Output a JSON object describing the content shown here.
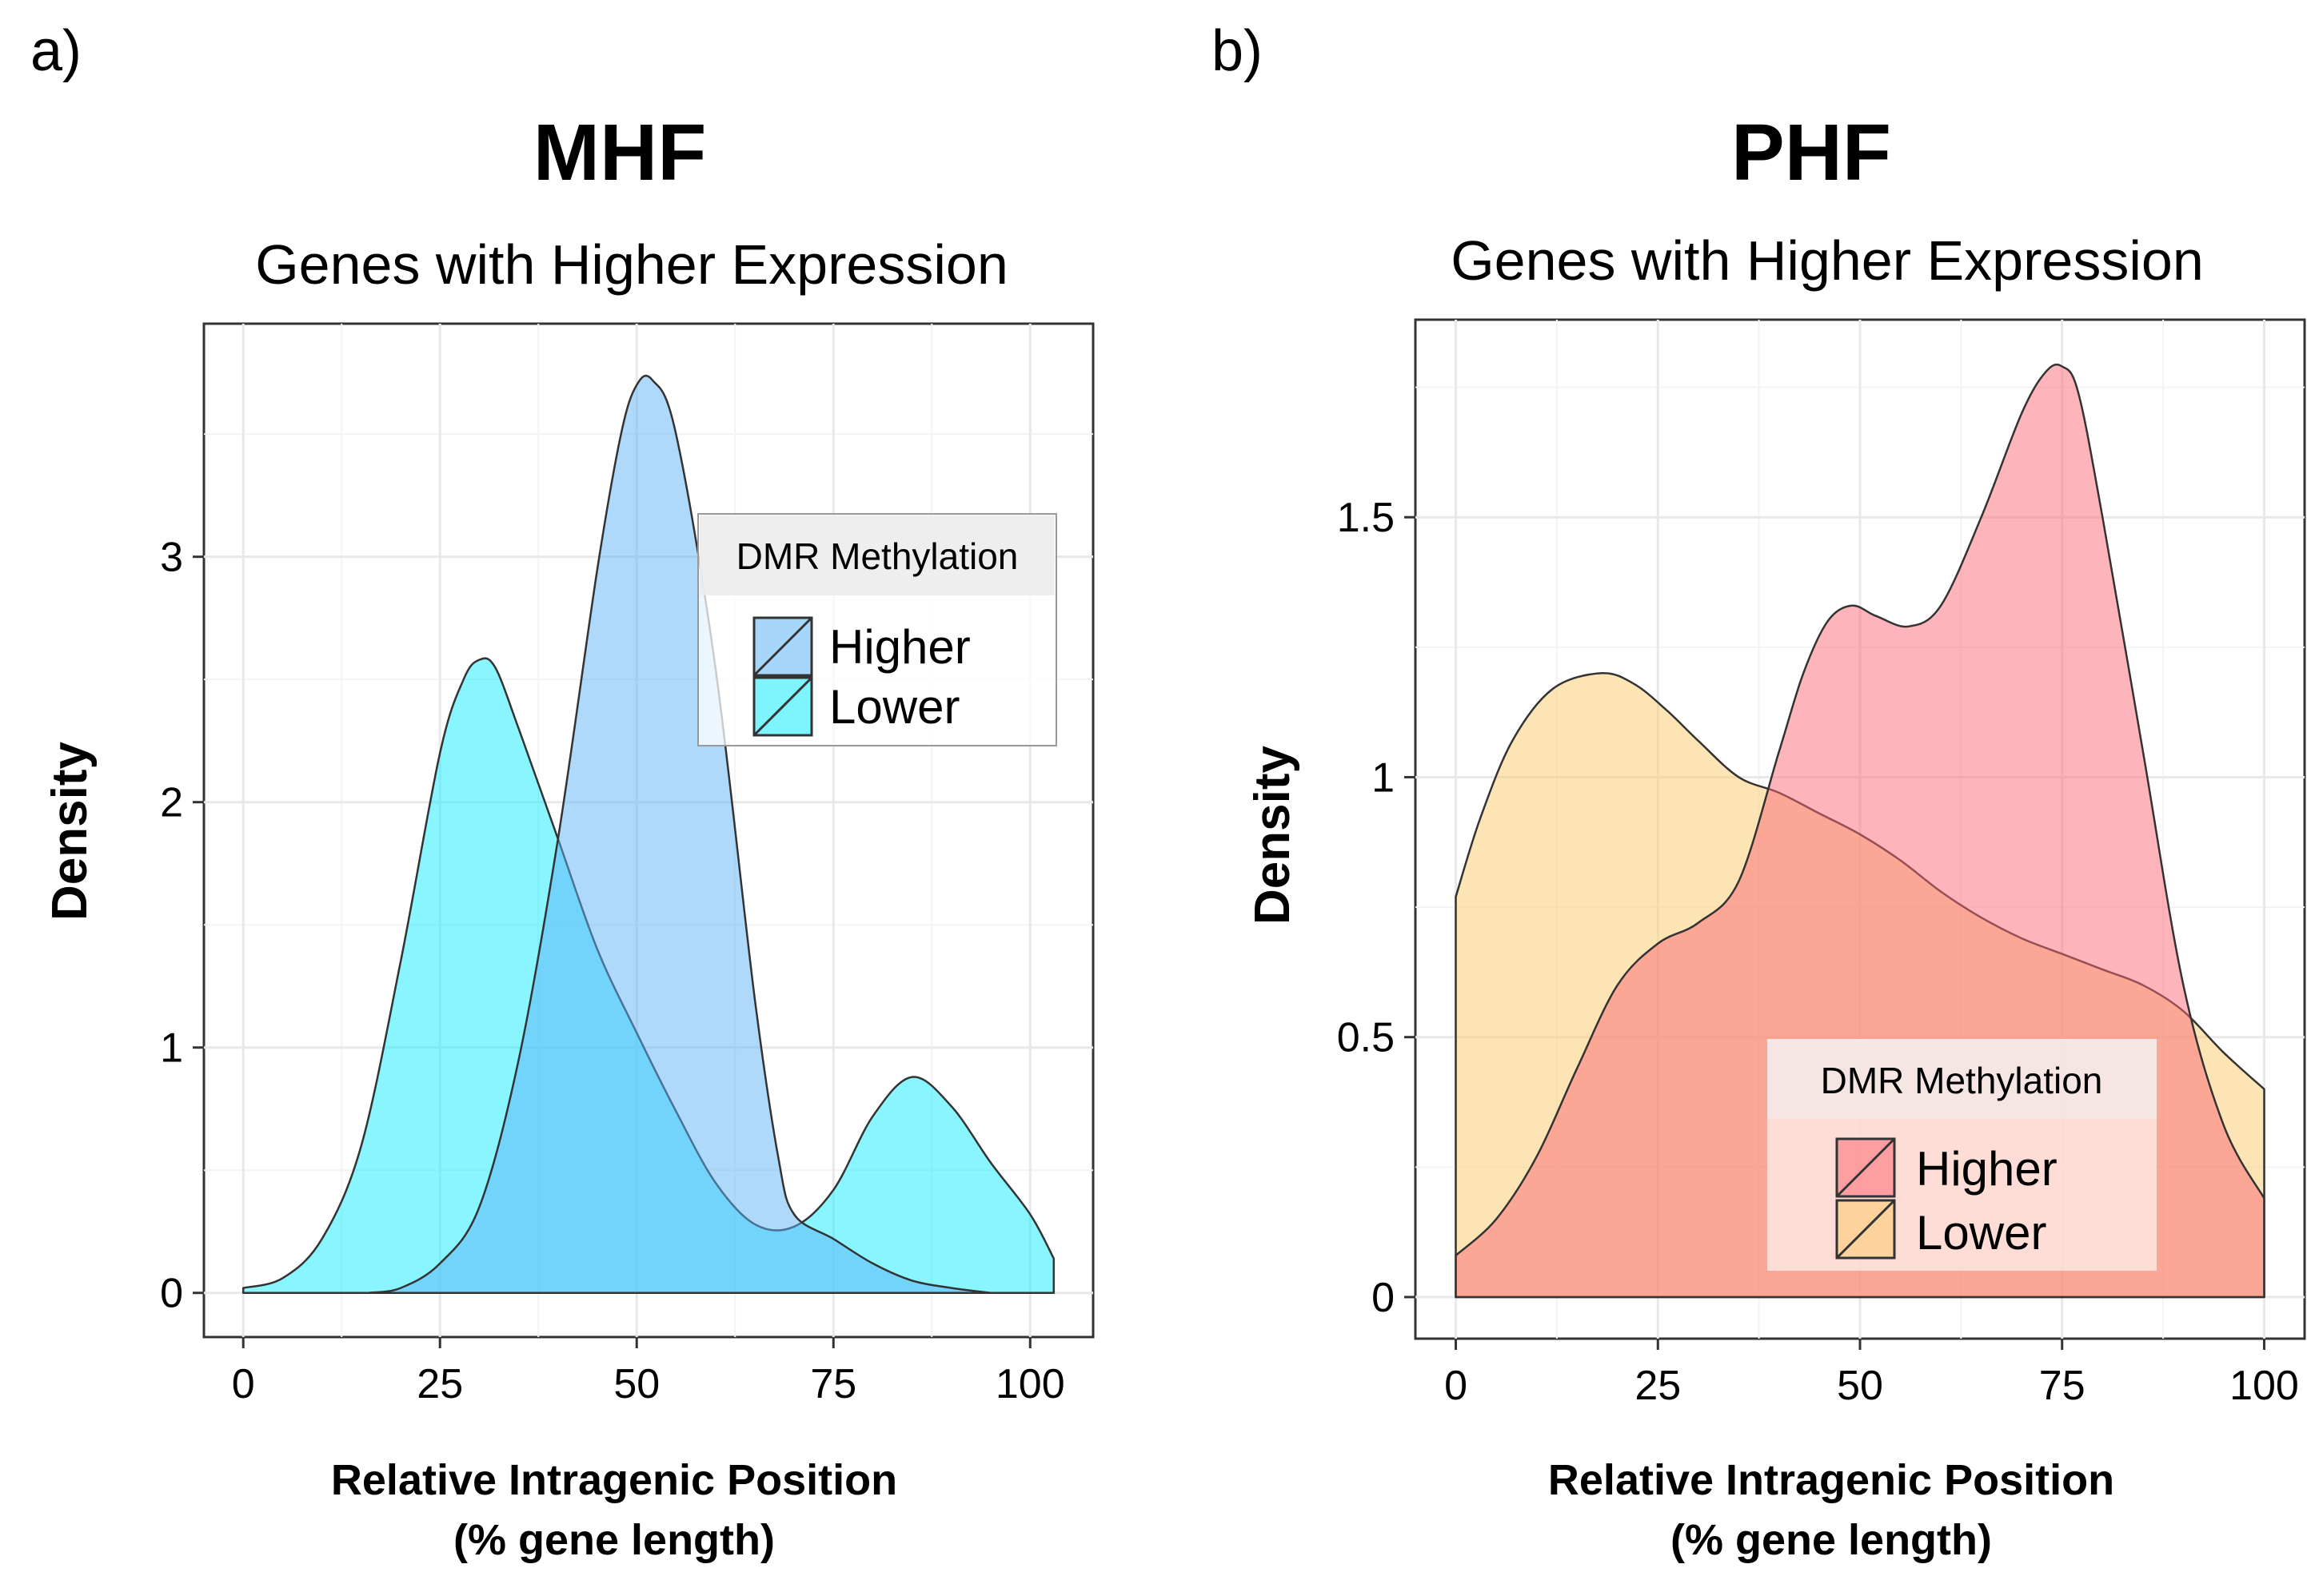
{
  "chart_data": [
    {
      "type": "area",
      "panel_label": "a)",
      "title": "MHF",
      "subtitle": "Genes with Higher Expression",
      "xlabel": [
        "Relative Intragenic Position",
        "(% gene length)"
      ],
      "ylabel": "Density",
      "xlim": [
        -5,
        108
      ],
      "ylim": [
        -0.18,
        3.95
      ],
      "x_ticks": [
        0,
        25,
        50,
        75,
        100
      ],
      "x_tick_labels": [
        "0",
        "25",
        "50",
        "75",
        "100"
      ],
      "y_ticks": [
        0,
        1,
        2,
        3
      ],
      "y_tick_labels": [
        "0",
        "1",
        "2",
        "3"
      ],
      "grid": true,
      "legend": {
        "title": "DMR Methylation",
        "position": "top-right",
        "entries": [
          "Higher",
          "Lower"
        ]
      },
      "series": [
        {
          "name": "Lower",
          "color": "#14ebff",
          "opacity": 0.5,
          "x": [
            0,
            5,
            10,
            15,
            20,
            25,
            28,
            30,
            32,
            35,
            40,
            45,
            50,
            55,
            60,
            65,
            70,
            75,
            80,
            85,
            90,
            95,
            100,
            103
          ],
          "y": [
            0.02,
            0.06,
            0.22,
            0.6,
            1.35,
            2.2,
            2.5,
            2.58,
            2.55,
            2.3,
            1.85,
            1.4,
            1.06,
            0.74,
            0.45,
            0.28,
            0.27,
            0.42,
            0.72,
            0.88,
            0.76,
            0.53,
            0.32,
            0.14
          ]
        },
        {
          "name": "Higher",
          "color": "#5eb4f7",
          "opacity": 0.5,
          "x": [
            16,
            20,
            25,
            30,
            35,
            40,
            45,
            48,
            50,
            52,
            55,
            60,
            65,
            68,
            70,
            75,
            80,
            85,
            90,
            95
          ],
          "y": [
            0.0,
            0.02,
            0.12,
            0.35,
            0.95,
            1.85,
            2.95,
            3.5,
            3.7,
            3.72,
            3.5,
            2.55,
            1.2,
            0.55,
            0.32,
            0.22,
            0.12,
            0.05,
            0.02,
            0.0
          ]
        }
      ]
    },
    {
      "type": "area",
      "panel_label": "b)",
      "title": "PHF",
      "subtitle": "Genes with Higher Expression",
      "xlabel": [
        "Relative Intragenic Position",
        "(% gene length)"
      ],
      "ylabel": "Density",
      "xlim": [
        -5,
        105
      ],
      "ylim": [
        -0.08,
        1.88
      ],
      "x_ticks": [
        0,
        25,
        50,
        75,
        100
      ],
      "x_tick_labels": [
        "0",
        "25",
        "50",
        "75",
        "100"
      ],
      "y_ticks": [
        0,
        0.5,
        1,
        1.5
      ],
      "y_tick_labels": [
        "0",
        "0.5",
        "1",
        "1.5"
      ],
      "grid": true,
      "legend": {
        "title": "DMR Methylation",
        "position": "bottom-right",
        "entries": [
          "Higher",
          "Lower"
        ]
      },
      "series": [
        {
          "name": "Lower",
          "color": "#fbc96c",
          "opacity": 0.5,
          "x": [
            0,
            3,
            7,
            12,
            18,
            22,
            26,
            30,
            35,
            40,
            45,
            50,
            55,
            60,
            65,
            70,
            75,
            80,
            85,
            90,
            95,
            100
          ],
          "y": [
            0.77,
            0.92,
            1.07,
            1.17,
            1.2,
            1.18,
            1.13,
            1.07,
            1.0,
            0.97,
            0.93,
            0.89,
            0.84,
            0.78,
            0.73,
            0.69,
            0.66,
            0.63,
            0.6,
            0.55,
            0.47,
            0.4
          ]
        },
        {
          "name": "Higher",
          "color": "#fb6a75",
          "opacity": 0.5,
          "x": [
            0,
            5,
            10,
            15,
            20,
            25,
            30,
            35,
            40,
            43,
            46,
            49,
            52,
            56,
            60,
            65,
            70,
            73,
            75,
            77,
            80,
            85,
            90,
            95,
            100
          ],
          "y": [
            0.08,
            0.15,
            0.27,
            0.44,
            0.6,
            0.68,
            0.72,
            0.8,
            1.05,
            1.2,
            1.3,
            1.33,
            1.31,
            1.29,
            1.33,
            1.5,
            1.7,
            1.78,
            1.79,
            1.74,
            1.5,
            1.05,
            0.6,
            0.33,
            0.19
          ]
        }
      ]
    }
  ]
}
